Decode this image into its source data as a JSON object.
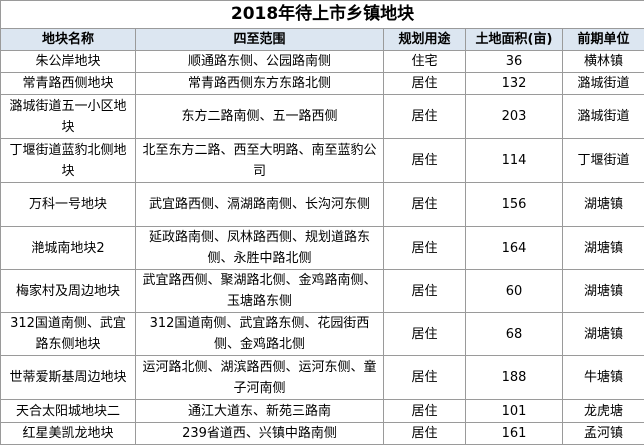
{
  "title": "2018年待上市乡镇地块",
  "table": {
    "header": [
      "地块名称",
      "四至范围",
      "规划用途",
      "土地面积(亩)",
      "前期单位"
    ],
    "rows": [
      [
        "朱公岸地块",
        "顺通路东侧、公园路南侧",
        "住宅",
        36,
        "横林镇"
      ],
      [
        "常青路西侧地块",
        "常青路西侧东方东路北侧",
        "居住",
        132,
        "潞城街道"
      ],
      [
        "潞城街道五一小区地块",
        "东方二路南侧、五一路西侧",
        "居住",
        203,
        "潞城街道"
      ],
      [
        "丁堰街道蓝豹北侧地块",
        "北至东方二路、西至大明路、南至蓝豹公司",
        "居住",
        114,
        "丁堰街道"
      ],
      [
        "万科一号地块",
        "武宜路西侧、滆湖路南侧、长沟河东侧",
        "居住",
        156,
        "湖塘镇"
      ],
      [
        "滟城南地块2",
        "延政路南侧、凤林路西侧、规划道路东侧、永胜中路北侧",
        "居住",
        164,
        "湖塘镇"
      ],
      [
        "梅家村及周边地块",
        "武宜路西侧、聚湖路北侧、金鸡路南侧、玉塘路东侧",
        "居住",
        60,
        "湖塘镇"
      ],
      [
        "312国道南侧、武宜路东侧地块",
        "312国道南侧、武宜路东侧、花园街西侧、金鸡路北侧",
        "居住",
        68,
        "湖塘镇"
      ],
      [
        "世蒂爱斯基周边地块",
        "运河路北侧、湖滨路西侧、运河东侧、童子河南侧",
        "居住",
        188,
        "牛塘镇"
      ],
      [
        "天合太阳城地块二",
        "通江大道东、新苑三路南",
        "居住",
        101,
        "龙虎塘"
      ],
      [
        "红星美凯龙地块",
        "239省道西、兴镇中路南侧",
        "居住",
        161,
        "孟河镇"
      ]
    ]
  }
}
